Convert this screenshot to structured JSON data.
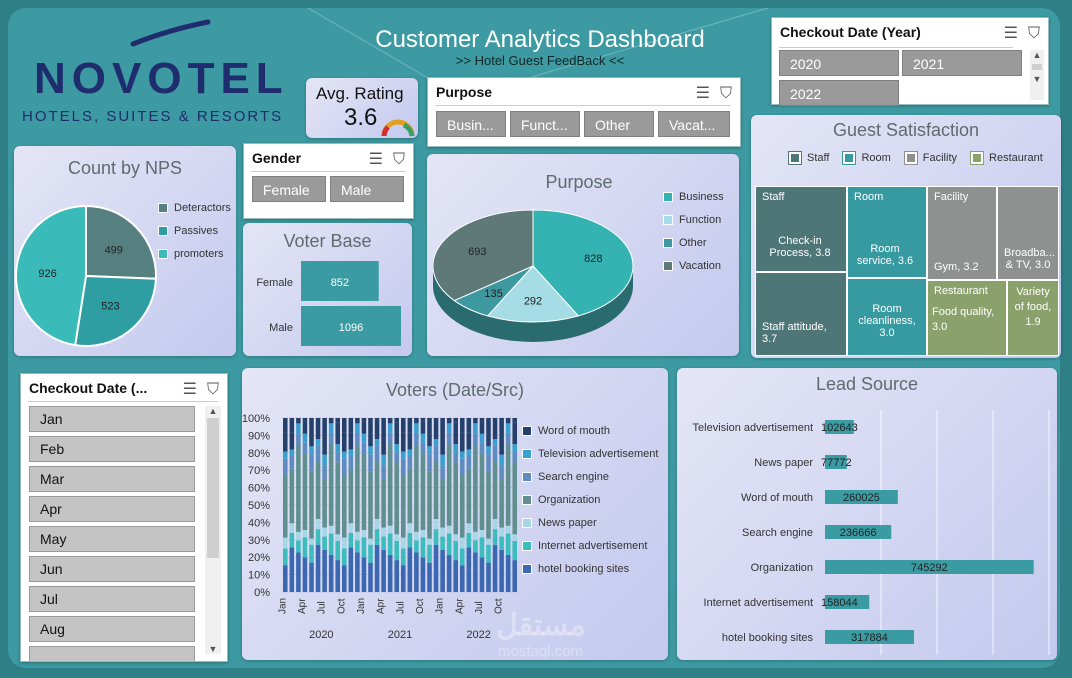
{
  "header": {
    "logo_main": "NOVOTEL",
    "logo_sub": "HOTELS, SUITES & RESORTS",
    "title": "Customer Analytics Dashboard",
    "subtitle": ">> Hotel Guest FeedBack <<"
  },
  "rating": {
    "label": "Avg. Rating",
    "value": "3.6"
  },
  "year_slicer": {
    "title": "Checkout Date (Year)",
    "items": [
      "2020",
      "2021",
      "2022"
    ]
  },
  "purpose_slicer": {
    "title": "Purpose",
    "items": [
      "Busin...",
      "Funct...",
      "Other",
      "Vacat..."
    ]
  },
  "gender_slicer": {
    "title": "Gender",
    "items": [
      "Female",
      "Male"
    ]
  },
  "month_slicer": {
    "title": "Checkout Date (...",
    "items": [
      "Jan",
      "Feb",
      "Mar",
      "Apr",
      "May",
      "Jun",
      "Jul",
      "Aug"
    ]
  },
  "nps": {
    "title": "Count by NPS",
    "legend": [
      "Deteractors",
      "Passives",
      "promoters"
    ],
    "colors": [
      "#56807f",
      "#2f9ea2",
      "#3bbaba"
    ]
  },
  "voter_base": {
    "title": "Voter Base"
  },
  "purpose_pie": {
    "title": "Purpose",
    "legend": [
      "Business",
      "Function",
      "Other",
      "Vacation"
    ],
    "colors": [
      "#35b3b3",
      "#a5dce6",
      "#3e989f",
      "#5f7878"
    ]
  },
  "guest_sat": {
    "title": "Guest Satisfaction",
    "legend": [
      "Staff",
      "Room",
      "Facility",
      "Restaurant"
    ],
    "colors": {
      "staff": "#4e7677",
      "room": "#379aa1",
      "facility": "#8f9090",
      "restaurant": "#8aa16c"
    },
    "headers": {
      "staff": "Staff",
      "room": "Room",
      "facility": "Facility",
      "restaurant": "Restaurant"
    },
    "cells": {
      "checkin": "Check-in Process, 3.8",
      "staff_att": "Staff attitude, 3.7",
      "room_service": "Room service, 3.6",
      "room_clean": "Room cleanliness, 3.0",
      "gym": "Gym, 3.2",
      "broadband": "Broadba... & TV, 3.0",
      "food_quality": "Food quality, 3.0",
      "food_variety": "Variety of food, 1.9"
    }
  },
  "voters": {
    "title": "Voters (Date/Src)",
    "years": [
      "2020",
      "2021",
      "2022"
    ],
    "legend": [
      "Word of mouth",
      "Television advertisement",
      "Search engine",
      "Organization",
      "News paper",
      "Internet advertisement",
      "hotel booking sites"
    ],
    "colors": [
      "#25406b",
      "#3aa0cf",
      "#5f8cc0",
      "#5f8f8f",
      "#a6d7e6",
      "#3bbcbd",
      "#3b68b0"
    ]
  },
  "lead": {
    "title": "Lead Source"
  },
  "chart_data": [
    {
      "type": "pie",
      "title": "Count by NPS",
      "categories": [
        "Deteractors",
        "Passives",
        "promoters"
      ],
      "values": [
        499,
        523,
        926
      ]
    },
    {
      "type": "bar",
      "title": "Voter Base",
      "categories": [
        "Female",
        "Male"
      ],
      "values": [
        852,
        1096
      ]
    },
    {
      "type": "pie",
      "title": "Purpose",
      "categories": [
        "Business",
        "Function",
        "Other",
        "Vacation"
      ],
      "values": [
        828,
        292,
        135,
        693
      ]
    },
    {
      "type": "table",
      "title": "Guest Satisfaction",
      "rows": [
        [
          "Staff",
          "Check-in Process",
          3.8
        ],
        [
          "Staff",
          "Staff attitude",
          3.7
        ],
        [
          "Room",
          "Room service",
          3.6
        ],
        [
          "Room",
          "Room cleanliness",
          3.0
        ],
        [
          "Facility",
          "Gym",
          3.2
        ],
        [
          "Facility",
          "Broadba... & TV",
          3.0
        ],
        [
          "Restaurant",
          "Food quality",
          3.0
        ],
        [
          "Restaurant",
          "Variety of food",
          1.9
        ]
      ]
    },
    {
      "type": "bar",
      "title": "Voters (Date/Src)",
      "stacked": "percent",
      "x_tick_labels": [
        "Jan",
        "Apr",
        "Jul",
        "Oct",
        "Jan",
        "Apr",
        "Jul",
        "Oct",
        "Jan",
        "Apr",
        "Jul",
        "Oct"
      ],
      "year_labels": [
        "2020",
        "2021",
        "2022"
      ],
      "y_ticks": [
        "0%",
        "10%",
        "20%",
        "30%",
        "40%",
        "50%",
        "60%",
        "70%",
        "80%",
        "90%",
        "100%"
      ],
      "series": [
        {
          "name": "hotel booking sites",
          "approx_share": 0.22
        },
        {
          "name": "Internet advertisement",
          "approx_share": 0.1
        },
        {
          "name": "News paper",
          "approx_share": 0.05
        },
        {
          "name": "Organization",
          "approx_share": 0.4
        },
        {
          "name": "Search engine",
          "approx_share": 0.08
        },
        {
          "name": "Television advertisement",
          "approx_share": 0.05
        },
        {
          "name": "Word of mouth",
          "approx_share": 0.1
        }
      ]
    },
    {
      "type": "bar",
      "title": "Lead Source",
      "orientation": "horizontal",
      "categories": [
        "Television advertisement",
        "News paper",
        "Word of mouth",
        "Search engine",
        "Organization",
        "Internet advertisement",
        "hotel booking sites"
      ],
      "values": [
        102643,
        77772,
        260025,
        236666,
        745292,
        158044,
        317884
      ]
    }
  ]
}
